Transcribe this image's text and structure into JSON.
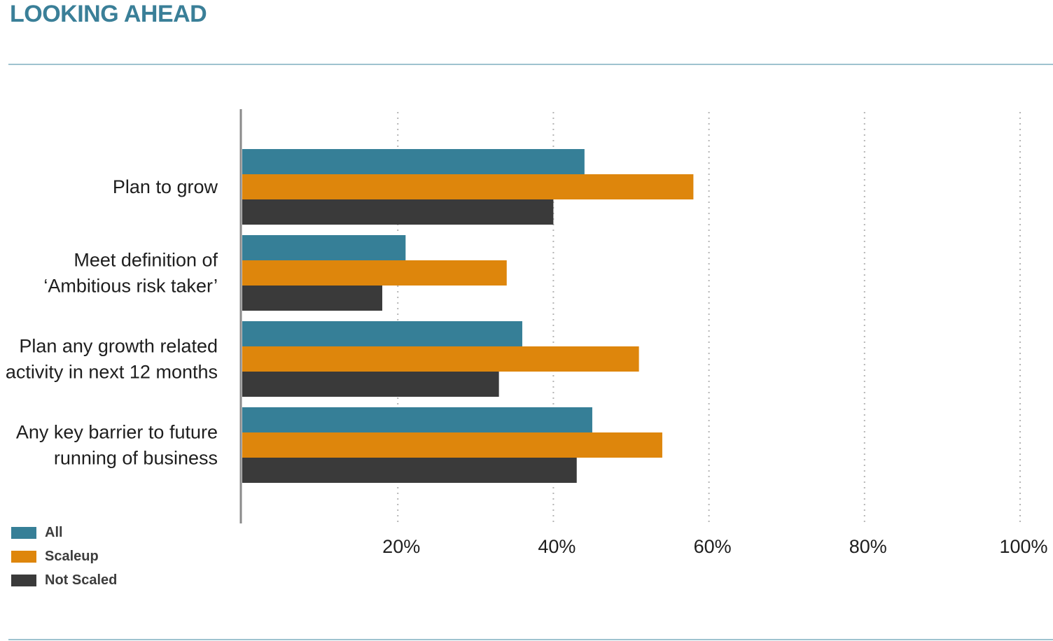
{
  "header": {
    "title": "LOOKING AHEAD"
  },
  "colors": {
    "accent": "#3a7f98",
    "rule": "#9ec3cf",
    "axis": "#8a8a8a",
    "grid": "#b5b5b5",
    "text": "#1e1e1e"
  },
  "chart_data": {
    "type": "bar",
    "orientation": "horizontal",
    "categories": [
      "Plan to grow",
      "Meet definition of\n‘Ambitious risk taker’",
      "Plan any growth related\nactivity in next 12 months",
      "Any key barrier to future\nrunning of business"
    ],
    "series": [
      {
        "name": "All",
        "color": "#367f97",
        "values": [
          44,
          21,
          36,
          45
        ]
      },
      {
        "name": "Scaleup",
        "color": "#de860c",
        "values": [
          58,
          34,
          51,
          54
        ]
      },
      {
        "name": "Not Scaled",
        "color": "#3a3a3a",
        "values": [
          40,
          18,
          33,
          43
        ]
      }
    ],
    "xlim": [
      0,
      100
    ],
    "xticks": [
      20,
      40,
      60,
      80,
      100
    ],
    "xtick_labels": [
      "20%",
      "40%",
      "60%",
      "80%",
      "100%"
    ],
    "grid": "vertical-dotted",
    "legend": "bottom-left"
  }
}
